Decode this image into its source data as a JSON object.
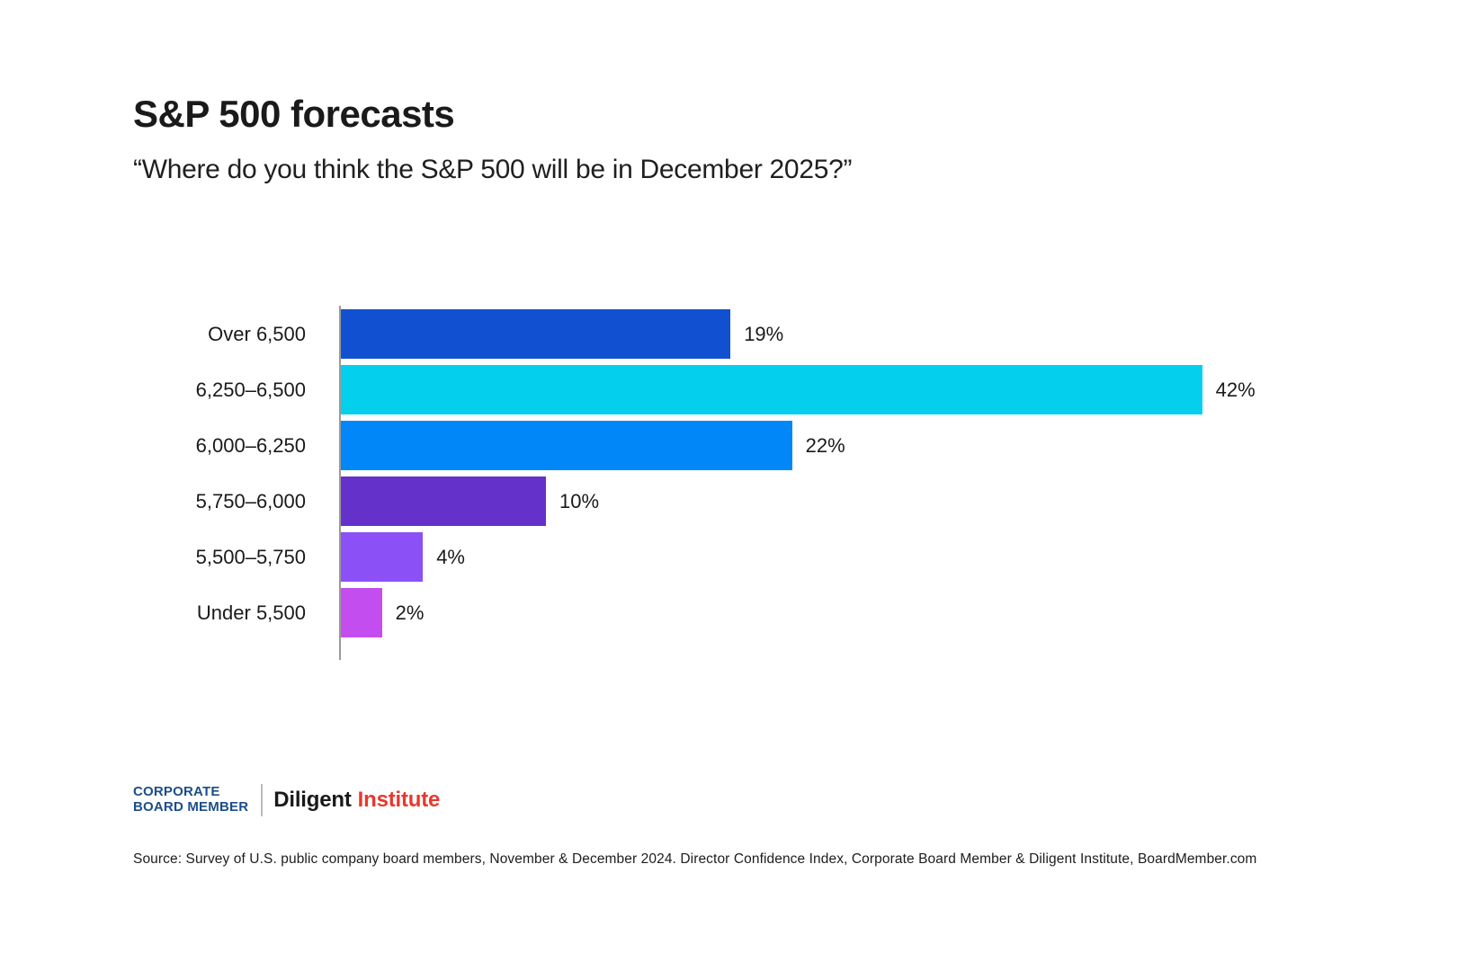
{
  "title": "S&P 500 forecasts",
  "subtitle": "“Where do you think the S&P 500 will be in December 2025?”",
  "chart_data": {
    "type": "bar",
    "orientation": "horizontal",
    "title": "S&P 500 forecasts",
    "subtitle": "“Where do you think the S&P 500 will be in December 2025?”",
    "categories": [
      "Over 6,500",
      "6,250–6,500",
      "6,000–6,250",
      "5,750–6,000",
      "5,500–5,750",
      "Under 5,500"
    ],
    "values": [
      19,
      42,
      22,
      10,
      4,
      2
    ],
    "value_labels": [
      "19%",
      "42%",
      "22%",
      "10%",
      "4%",
      "2%"
    ],
    "bar_colors": [
      "#1151d1",
      "#04d0ee",
      "#0187f7",
      "#6531cb",
      "#8b50f6",
      "#c44df0"
    ],
    "xlim": [
      0,
      45
    ],
    "grid": false,
    "legend": false,
    "axis_line_color": "#9a9a9a",
    "value_label_position": "outside-end"
  },
  "footer": {
    "logo": {
      "brand_line1": "CORPORATE",
      "brand_line2": "BOARD MEMBER",
      "brand_color": "#1c4e89",
      "partner_name": "Diligent",
      "partner_suffix": "Institute",
      "partner_suffix_color": "#e8382d"
    },
    "source": "Source: Survey of U.S. public company board members, November & December 2024. Director Confidence Index, Corporate Board Member & Diligent Institute, BoardMember.com"
  }
}
